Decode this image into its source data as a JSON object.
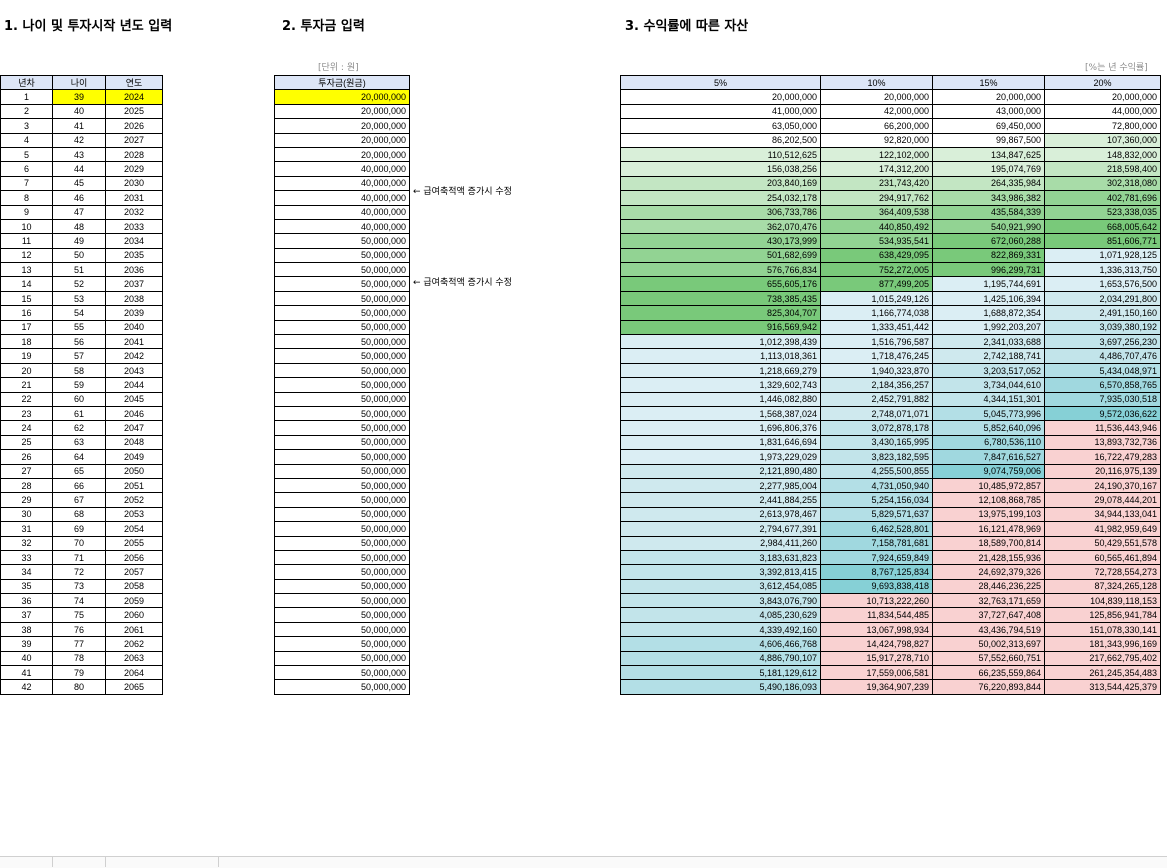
{
  "sections": {
    "s1_title": "1. 나이 및 투자시작 년도 입력",
    "s2_title": "2. 투자금 입력",
    "s3_title": "3. 수익률에 따른 자산"
  },
  "units": {
    "won": "[단위 : 원]",
    "rate": "[%는 년 수익률]"
  },
  "table1": {
    "headers": [
      "년차",
      "나이",
      "연도"
    ],
    "rows": [
      [
        "1",
        "39",
        "2024"
      ],
      [
        "2",
        "40",
        "2025"
      ],
      [
        "3",
        "41",
        "2026"
      ],
      [
        "4",
        "42",
        "2027"
      ],
      [
        "5",
        "43",
        "2028"
      ],
      [
        "6",
        "44",
        "2029"
      ],
      [
        "7",
        "45",
        "2030"
      ],
      [
        "8",
        "46",
        "2031"
      ],
      [
        "9",
        "47",
        "2032"
      ],
      [
        "10",
        "48",
        "2033"
      ],
      [
        "11",
        "49",
        "2034"
      ],
      [
        "12",
        "50",
        "2035"
      ],
      [
        "13",
        "51",
        "2036"
      ],
      [
        "14",
        "52",
        "2037"
      ],
      [
        "15",
        "53",
        "2038"
      ],
      [
        "16",
        "54",
        "2039"
      ],
      [
        "17",
        "55",
        "2040"
      ],
      [
        "18",
        "56",
        "2041"
      ],
      [
        "19",
        "57",
        "2042"
      ],
      [
        "20",
        "58",
        "2043"
      ],
      [
        "21",
        "59",
        "2044"
      ],
      [
        "22",
        "60",
        "2045"
      ],
      [
        "23",
        "61",
        "2046"
      ],
      [
        "24",
        "62",
        "2047"
      ],
      [
        "25",
        "63",
        "2048"
      ],
      [
        "26",
        "64",
        "2049"
      ],
      [
        "27",
        "65",
        "2050"
      ],
      [
        "28",
        "66",
        "2051"
      ],
      [
        "29",
        "67",
        "2052"
      ],
      [
        "30",
        "68",
        "2053"
      ],
      [
        "31",
        "69",
        "2054"
      ],
      [
        "32",
        "70",
        "2055"
      ],
      [
        "33",
        "71",
        "2056"
      ],
      [
        "34",
        "72",
        "2057"
      ],
      [
        "35",
        "73",
        "2058"
      ],
      [
        "36",
        "74",
        "2059"
      ],
      [
        "37",
        "75",
        "2060"
      ],
      [
        "38",
        "76",
        "2061"
      ],
      [
        "39",
        "77",
        "2062"
      ],
      [
        "40",
        "78",
        "2063"
      ],
      [
        "41",
        "79",
        "2064"
      ],
      [
        "42",
        "80",
        "2065"
      ]
    ]
  },
  "table2": {
    "header": "투자금(원금)",
    "rows": [
      "20,000,000",
      "20,000,000",
      "20,000,000",
      "20,000,000",
      "20,000,000",
      "40,000,000",
      "40,000,000",
      "40,000,000",
      "40,000,000",
      "40,000,000",
      "50,000,000",
      "50,000,000",
      "50,000,000",
      "50,000,000",
      "50,000,000",
      "50,000,000",
      "50,000,000",
      "50,000,000",
      "50,000,000",
      "50,000,000",
      "50,000,000",
      "50,000,000",
      "50,000,000",
      "50,000,000",
      "50,000,000",
      "50,000,000",
      "50,000,000",
      "50,000,000",
      "50,000,000",
      "50,000,000",
      "50,000,000",
      "50,000,000",
      "50,000,000",
      "50,000,000",
      "50,000,000",
      "50,000,000",
      "50,000,000",
      "50,000,000",
      "50,000,000",
      "50,000,000",
      "50,000,000",
      "50,000,000"
    ]
  },
  "notes": {
    "row6": "← 급여축적액 증가시 수정",
    "row11": "← 급여축적액 증가시 수정"
  },
  "table3": {
    "headers": [
      "5%",
      "10%",
      "15%",
      "20%"
    ],
    "rows": [
      [
        "20,000,000",
        "20,000,000",
        "20,000,000",
        "20,000,000"
      ],
      [
        "41,000,000",
        "42,000,000",
        "43,000,000",
        "44,000,000"
      ],
      [
        "63,050,000",
        "66,200,000",
        "69,450,000",
        "72,800,000"
      ],
      [
        "86,202,500",
        "92,820,000",
        "99,867,500",
        "107,360,000"
      ],
      [
        "110,512,625",
        "122,102,000",
        "134,847,625",
        "148,832,000"
      ],
      [
        "156,038,256",
        "174,312,200",
        "195,074,769",
        "218,598,400"
      ],
      [
        "203,840,169",
        "231,743,420",
        "264,335,984",
        "302,318,080"
      ],
      [
        "254,032,178",
        "294,917,762",
        "343,986,382",
        "402,781,696"
      ],
      [
        "306,733,786",
        "364,409,538",
        "435,584,339",
        "523,338,035"
      ],
      [
        "362,070,476",
        "440,850,492",
        "540,921,990",
        "668,005,642"
      ],
      [
        "430,173,999",
        "534,935,541",
        "672,060,288",
        "851,606,771"
      ],
      [
        "501,682,699",
        "638,429,095",
        "822,869,331",
        "1,071,928,125"
      ],
      [
        "576,766,834",
        "752,272,005",
        "996,299,731",
        "1,336,313,750"
      ],
      [
        "655,605,176",
        "877,499,205",
        "1,195,744,691",
        "1,653,576,500"
      ],
      [
        "738,385,435",
        "1,015,249,126",
        "1,425,106,394",
        "2,034,291,800"
      ],
      [
        "825,304,707",
        "1,166,774,038",
        "1,688,872,354",
        "2,491,150,160"
      ],
      [
        "916,569,942",
        "1,333,451,442",
        "1,992,203,207",
        "3,039,380,192"
      ],
      [
        "1,012,398,439",
        "1,516,796,587",
        "2,341,033,688",
        "3,697,256,230"
      ],
      [
        "1,113,018,361",
        "1,718,476,245",
        "2,742,188,741",
        "4,486,707,476"
      ],
      [
        "1,218,669,279",
        "1,940,323,870",
        "3,203,517,052",
        "5,434,048,971"
      ],
      [
        "1,329,602,743",
        "2,184,356,257",
        "3,734,044,610",
        "6,570,858,765"
      ],
      [
        "1,446,082,880",
        "2,452,791,882",
        "4,344,151,301",
        "7,935,030,518"
      ],
      [
        "1,568,387,024",
        "2,748,071,071",
        "5,045,773,996",
        "9,572,036,622"
      ],
      [
        "1,696,806,376",
        "3,072,878,178",
        "5,852,640,096",
        "11,536,443,946"
      ],
      [
        "1,831,646,694",
        "3,430,165,995",
        "6,780,536,110",
        "13,893,732,736"
      ],
      [
        "1,973,229,029",
        "3,823,182,595",
        "7,847,616,527",
        "16,722,479,283"
      ],
      [
        "2,121,890,480",
        "4,255,500,855",
        "9,074,759,006",
        "20,116,975,139"
      ],
      [
        "2,277,985,004",
        "4,731,050,940",
        "10,485,972,857",
        "24,190,370,167"
      ],
      [
        "2,441,884,255",
        "5,254,156,034",
        "12,108,868,785",
        "29,078,444,201"
      ],
      [
        "2,613,978,467",
        "5,829,571,637",
        "13,975,199,103",
        "34,944,133,041"
      ],
      [
        "2,794,677,391",
        "6,462,528,801",
        "16,121,478,969",
        "41,982,959,649"
      ],
      [
        "2,984,411,260",
        "7,158,781,681",
        "18,589,700,814",
        "50,429,551,578"
      ],
      [
        "3,183,631,823",
        "7,924,659,849",
        "21,428,155,936",
        "60,565,461,894"
      ],
      [
        "3,392,813,415",
        "8,767,125,834",
        "24,692,379,326",
        "72,728,554,273"
      ],
      [
        "3,612,454,085",
        "9,693,838,418",
        "28,446,236,225",
        "87,324,265,128"
      ],
      [
        "3,843,076,790",
        "10,713,222,260",
        "32,763,171,659",
        "104,839,118,153"
      ],
      [
        "4,085,230,629",
        "11,834,544,485",
        "37,727,647,408",
        "125,856,941,784"
      ],
      [
        "4,339,492,160",
        "13,067,998,934",
        "43,436,794,519",
        "151,078,330,141"
      ],
      [
        "4,606,466,768",
        "14,424,798,827",
        "50,002,313,697",
        "181,343,996,169"
      ],
      [
        "4,886,790,107",
        "15,917,278,710",
        "57,552,660,751",
        "217,662,795,402"
      ],
      [
        "5,181,129,612",
        "17,559,006,581",
        "66,235,559,864",
        "261,245,354,483"
      ],
      [
        "5,490,186,093",
        "19,364,907,239",
        "76,220,893,844",
        "313,544,425,379"
      ]
    ]
  },
  "colors": {
    "header_bg": "#dde6f7",
    "highlight": "#ffff00",
    "green_light": "#d9efd9",
    "green_mid": "#a8dca8",
    "green_dark": "#79c97a",
    "blue_light": "#dbeef4",
    "blue_mid": "#b3dfe6",
    "blue_dark": "#86d0d6",
    "pink": "#f9d1d1"
  }
}
